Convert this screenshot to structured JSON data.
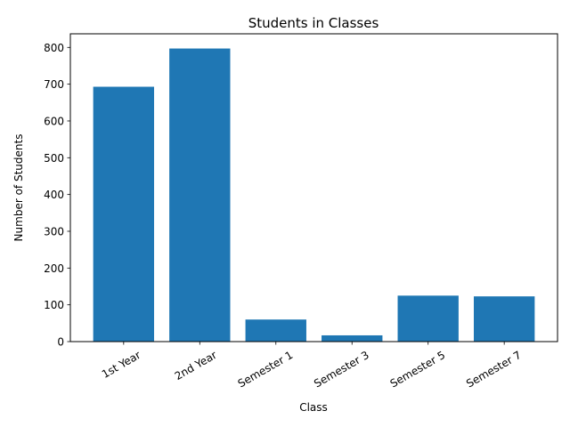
{
  "chart_data": {
    "type": "bar",
    "title": "Students in Classes",
    "xlabel": "Class",
    "ylabel": "Number of Students",
    "categories": [
      "1st Year",
      "2nd Year",
      "Semester 1",
      "Semester 3",
      "Semester 5",
      "Semester 7"
    ],
    "values": [
      693,
      797,
      60,
      17,
      125,
      123
    ],
    "ylim": [
      0,
      837
    ],
    "yticks": [
      0,
      100,
      200,
      300,
      400,
      500,
      600,
      700,
      800
    ],
    "bar_color": "#1f77b4",
    "grid": false,
    "xtick_rotation": 30
  }
}
